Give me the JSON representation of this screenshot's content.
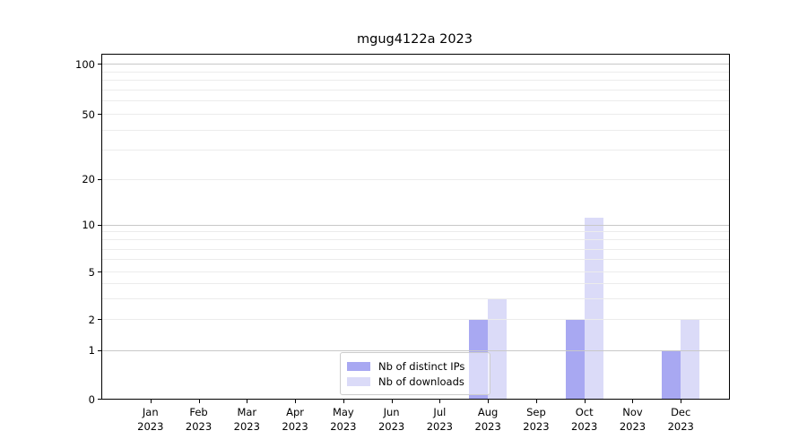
{
  "title": "mgug4122a 2023",
  "chart_data": {
    "type": "bar",
    "title": "mgug4122a 2023",
    "categories": [
      "Jan 2023",
      "Feb 2023",
      "Mar 2023",
      "Apr 2023",
      "May 2023",
      "Jun 2023",
      "Jul 2023",
      "Aug 2023",
      "Sep 2023",
      "Oct 2023",
      "Nov 2023",
      "Dec 2023"
    ],
    "series": [
      {
        "name": "Nb of distinct IPs",
        "color": "#a8a8f2",
        "values": [
          0,
          0,
          0,
          0,
          0,
          0,
          0,
          2,
          0,
          2,
          0,
          1
        ]
      },
      {
        "name": "Nb of downloads",
        "color": "#dbdbf8",
        "values": [
          0,
          0,
          0,
          0,
          0,
          0,
          0,
          3,
          0,
          11,
          0,
          2
        ]
      }
    ],
    "xlabel": "",
    "ylabel": "",
    "ylim": [
      0,
      100
    ],
    "yscale": "log-like with 0 baseline",
    "yticks": [
      0,
      1,
      2,
      5,
      10,
      20,
      50,
      100
    ],
    "grid": {
      "orientation": "horizontal",
      "major_values": [
        1,
        10,
        100
      ],
      "minor_values": [
        2,
        3,
        4,
        5,
        6,
        7,
        8,
        9,
        20,
        30,
        40,
        50,
        60,
        70,
        80,
        90
      ],
      "major_color": "#c8c8c8",
      "minor_color": "#ececec",
      "drawn_above_bars": true
    },
    "legend_position": "inside lower center-left",
    "frame": "full box, black spines"
  },
  "legend": {
    "items": [
      {
        "label": "Nb of distinct IPs",
        "color": "#a8a8f2"
      },
      {
        "label": "Nb of downloads",
        "color": "#dbdbf8"
      }
    ]
  }
}
